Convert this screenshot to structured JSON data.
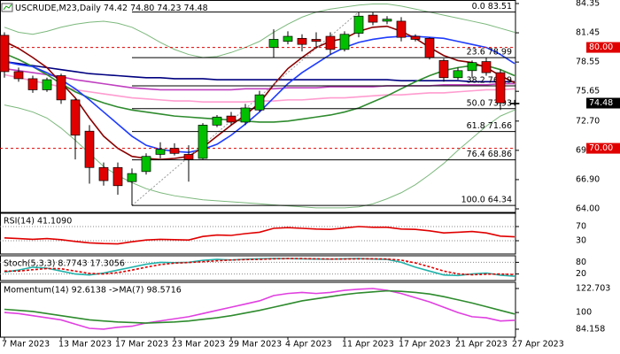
{
  "chart_data": [
    {
      "type": "candlestick",
      "title": "USCRUDE,M23,Daily 74.42 74.80 74.23 74.48",
      "categories": [
        "7 Mar 2023",
        null,
        null,
        null,
        "13 Mar 2023",
        null,
        null,
        null,
        "17 Mar 2023",
        null,
        null,
        null,
        "23 Mar 2023",
        null,
        null,
        null,
        "29 Mar 2023",
        null,
        null,
        null,
        "4 Apr 2023",
        null,
        null,
        null,
        "11 Apr 2023",
        null,
        null,
        null,
        "17 Apr 2023",
        null,
        null,
        null,
        "21 Apr 2023",
        null,
        null,
        null,
        "27 Apr 2023"
      ],
      "open": [
        81.2,
        77.6,
        76.9,
        75.8,
        77.2,
        74.8,
        71.7,
        68.1,
        68.1,
        66.7,
        67.7,
        69.4,
        70.0,
        69.4,
        69.0,
        72.3,
        73.2,
        72.6,
        73.8,
        80.0,
        80.6,
        80.9,
        80.8,
        81.1,
        79.8,
        81.4,
        83.2,
        82.6,
        82.6,
        81.1,
        80.9,
        78.7,
        77.0,
        77.7,
        78.6,
        77.5,
        74.42
      ],
      "high": [
        81.5,
        78.0,
        77.2,
        77.0,
        77.4,
        74.9,
        72.3,
        68.6,
        68.6,
        68.0,
        69.5,
        70.6,
        70.5,
        70.3,
        72.5,
        73.3,
        73.6,
        74.4,
        75.7,
        81.8,
        81.6,
        81.3,
        81.5,
        81.5,
        81.6,
        83.51,
        83.5,
        83.1,
        83.0,
        81.3,
        81.0,
        78.9,
        78.0,
        78.7,
        79.0,
        77.8,
        74.8
      ],
      "low": [
        77.0,
        76.6,
        75.5,
        75.6,
        74.4,
        68.9,
        66.5,
        66.3,
        65.4,
        64.34,
        67.4,
        69.0,
        69.3,
        66.7,
        68.9,
        72.1,
        72.3,
        72.3,
        73.6,
        79.0,
        80.3,
        79.6,
        79.9,
        79.3,
        79.6,
        81.0,
        82.2,
        82.3,
        80.6,
        80.6,
        78.8,
        76.6,
        76.8,
        77.0,
        77.2,
        73.8,
        74.23
      ],
      "close": [
        77.6,
        76.9,
        75.8,
        76.8,
        74.8,
        71.3,
        68.1,
        66.8,
        66.3,
        67.5,
        69.2,
        69.9,
        69.5,
        68.9,
        72.3,
        73.1,
        72.6,
        74.0,
        75.3,
        80.8,
        81.1,
        80.3,
        80.6,
        79.8,
        81.3,
        83.1,
        82.5,
        82.8,
        81.0,
        80.8,
        79.0,
        77.0,
        77.7,
        78.5,
        77.5,
        74.5,
        74.48
      ],
      "up_color": "#00c000",
      "down_color": "#e00000",
      "series": [
        {
          "color": "#7cb87c",
          "values": [
            82.0,
            81.5,
            81.3,
            81.6,
            82.0,
            82.3,
            82.5,
            82.6,
            82.4,
            82.0,
            81.3,
            80.5,
            79.8,
            79.3,
            79.0,
            79.1,
            79.5,
            80.0,
            80.6,
            81.5,
            82.3,
            83.0,
            83.5,
            83.8,
            84.0,
            84.2,
            84.3,
            84.3,
            84.1,
            83.8,
            83.5,
            83.2,
            82.9,
            82.6,
            82.3,
            81.9,
            81.5
          ]
        },
        {
          "color": "#7cb87c",
          "values": [
            74.3,
            74.0,
            73.6,
            73.0,
            72.0,
            70.8,
            69.5,
            68.2,
            67.3,
            66.6,
            66.0,
            65.6,
            65.3,
            65.1,
            64.9,
            64.8,
            64.7,
            64.6,
            64.5,
            64.4,
            64.3,
            64.2,
            64.1,
            64.1,
            64.1,
            64.2,
            64.5,
            65.0,
            65.6,
            66.4,
            67.4,
            68.5,
            69.8,
            71.0,
            72.2,
            73.2,
            73.8
          ]
        },
        {
          "color": "#ff9ccf",
          "values": [
            77.3,
            77.0,
            76.7,
            76.4,
            76.1,
            75.8,
            75.6,
            75.4,
            75.2,
            75.0,
            74.9,
            74.8,
            74.7,
            74.7,
            74.6,
            74.6,
            74.6,
            74.6,
            74.7,
            74.7,
            74.8,
            74.8,
            74.9,
            75.0,
            75.0,
            75.1,
            75.2,
            75.3,
            75.3,
            75.4,
            75.5,
            75.5,
            75.6,
            75.7,
            75.8,
            75.8,
            75.9
          ]
        },
        {
          "color": "#c040c0",
          "values": [
            77.9,
            77.7,
            77.5,
            77.3,
            77.1,
            76.8,
            76.6,
            76.4,
            76.2,
            76.0,
            75.9,
            75.8,
            75.8,
            75.8,
            75.8,
            75.8,
            75.8,
            75.9,
            75.9,
            75.9,
            76.0,
            76.0,
            76.0,
            76.1,
            76.1,
            76.1,
            76.1,
            76.2,
            76.2,
            76.2,
            76.2,
            76.3,
            76.3,
            76.3,
            76.3,
            76.4,
            76.4
          ]
        },
        {
          "color": "#000080",
          "values": [
            78.6,
            78.4,
            78.2,
            78.0,
            77.8,
            77.6,
            77.4,
            77.3,
            77.2,
            77.1,
            77.0,
            77.0,
            76.9,
            76.9,
            76.9,
            76.8,
            76.8,
            76.8,
            76.8,
            76.8,
            76.8,
            76.8,
            76.8,
            76.8,
            76.8,
            76.8,
            76.8,
            76.8,
            76.7,
            76.7,
            76.7,
            76.7,
            76.7,
            76.6,
            76.6,
            76.6,
            76.6
          ]
        },
        {
          "color": "#2e8b2e",
          "values": [
            79.4,
            78.8,
            78.1,
            77.3,
            76.4,
            75.6,
            75.0,
            74.5,
            74.1,
            73.8,
            73.6,
            73.4,
            73.2,
            73.1,
            73.0,
            72.9,
            72.8,
            72.7,
            72.6,
            72.6,
            72.7,
            72.9,
            73.1,
            73.3,
            73.6,
            74.0,
            74.6,
            75.2,
            75.9,
            76.6,
            77.2,
            77.7,
            78.0,
            78.2,
            78.2,
            77.8,
            77.2
          ]
        },
        {
          "color": "#1e3cff",
          "values": [
            78.6,
            78.3,
            78.1,
            77.5,
            76.8,
            75.9,
            74.8,
            73.6,
            72.4,
            71.2,
            70.3,
            69.9,
            69.7,
            69.6,
            69.9,
            70.4,
            71.3,
            72.4,
            73.6,
            75.0,
            76.4,
            77.5,
            78.4,
            79.3,
            80.0,
            80.5,
            80.8,
            81.0,
            81.1,
            81.1,
            81.0,
            80.9,
            80.6,
            80.3,
            80.0,
            79.3,
            78.4
          ]
        },
        {
          "color": "#8b0000",
          "values": [
            80.6,
            79.9,
            79.0,
            78.0,
            76.5,
            75.0,
            73.0,
            71.2,
            70.0,
            69.2,
            69.0,
            68.9,
            69.0,
            69.2,
            70.1,
            71.2,
            72.3,
            73.3,
            74.5,
            76.3,
            77.9,
            79.0,
            80.0,
            80.6,
            80.9,
            81.6,
            82.0,
            82.1,
            81.6,
            80.9,
            80.0,
            79.2,
            78.7,
            78.5,
            78.0,
            77.2,
            76.5
          ]
        }
      ],
      "ylim": [
        63.65,
        84.7
      ],
      "yticks": [
        84.35,
        81.45,
        78.55,
        75.65,
        {
          "value": 72.7,
          "label": "72.70"
        },
        {
          "value": 69.8,
          "label": "69.80"
        },
        {
          "value": 66.9,
          "label": "66.90"
        },
        {
          "value": 64,
          "label": "64.00"
        }
      ],
      "fib_levels": [
        {
          "value": 83.51,
          "label": "0.0 83.51"
        },
        {
          "value": 78.99,
          "label": "23.6 78.99"
        },
        {
          "value": 76.19,
          "label": "38.2 76.19"
        },
        {
          "value": 73.93,
          "label": "50.0 73.93"
        },
        {
          "value": 71.66,
          "label": "61.8 71.66"
        },
        {
          "value": 68.86,
          "label": "76.4 68.86"
        },
        {
          "value": 64.34,
          "label": "100.0 64.34"
        }
      ],
      "hlines": [
        {
          "value": 80,
          "label": "80.00",
          "color": "#e00000"
        },
        {
          "value": 70,
          "label": "70.00",
          "color": "#e00000"
        }
      ],
      "last_price": 74.48
    },
    {
      "type": "line",
      "title": "RSI(14) 41.1090",
      "ylim": [
        0,
        100
      ],
      "yticks": [
        70,
        30
      ],
      "grid": true,
      "series": [
        {
          "color": "#e00000",
          "values": [
            38,
            36,
            34,
            36,
            33,
            28,
            24,
            22,
            21,
            27,
            32,
            34,
            33,
            32,
            42,
            46,
            45,
            50,
            54,
            65,
            67,
            65,
            63,
            62,
            66,
            70,
            68,
            68,
            63,
            62,
            58,
            52,
            54,
            56,
            52,
            43,
            41.109
          ]
        }
      ]
    },
    {
      "type": "line",
      "title": "Stoch(5,3,3) 8.7743 17.3056",
      "ylim": [
        0,
        100
      ],
      "yticks": [
        80,
        20
      ],
      "grid": true,
      "series": [
        {
          "color": "#20b2aa",
          "values": [
            30,
            40,
            55,
            50,
            35,
            20,
            15,
            25,
            40,
            55,
            70,
            80,
            78,
            80,
            90,
            95,
            92,
            96,
            98,
            99,
            99,
            98,
            97,
            96,
            98,
            99,
            97,
            95,
            80,
            55,
            35,
            15,
            12,
            20,
            25,
            14,
            8.7743
          ]
        },
        {
          "color": "#e00000",
          "dash": true,
          "values": [
            35,
            35,
            42,
            48,
            47,
            35,
            23,
            20,
            27,
            40,
            55,
            68,
            76,
            79,
            83,
            88,
            92,
            94,
            95,
            98,
            99,
            99,
            98,
            97,
            97,
            98,
            98,
            97,
            91,
            77,
            57,
            35,
            21,
            16,
            19,
            20,
            17.3056
          ]
        }
      ]
    },
    {
      "type": "line",
      "title": "Momentum(14) 92.6138 ->MA(7) 98.5716",
      "ylim": [
        84.158,
        122.703
      ],
      "yticks": [
        122.703,
        100,
        84.158
      ],
      "grid": false,
      "series": [
        {
          "color": "#e040e0",
          "values": [
            100,
            99,
            97,
            95,
            93,
            89,
            85,
            84.2,
            86,
            87,
            90,
            92,
            94,
            96,
            99,
            102,
            105,
            108,
            111,
            116,
            118,
            119,
            118,
            119,
            121,
            122,
            122.7,
            121,
            118,
            114,
            110,
            105,
            100,
            96,
            95,
            92,
            92.6138
          ]
        },
        {
          "color": "#2e8b2e",
          "values": [
            103,
            102,
            101,
            99,
            97,
            95,
            93,
            92,
            91,
            90.5,
            90,
            90.5,
            91,
            92,
            93.5,
            95,
            97,
            99.5,
            102,
            105,
            108,
            111,
            113,
            115,
            117,
            118.5,
            119.5,
            120.5,
            120,
            119,
            117.5,
            115,
            112,
            109,
            105.5,
            102,
            98.5716
          ]
        }
      ]
    }
  ]
}
